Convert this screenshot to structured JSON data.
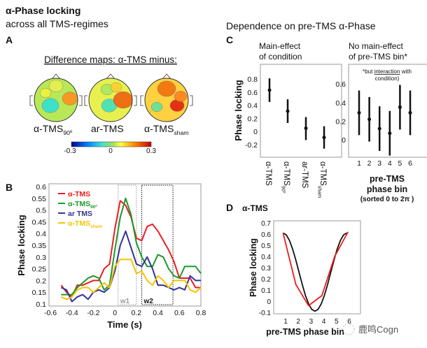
{
  "header": {
    "left_title": "α-Phase locking",
    "left_subtitle": "across all TMS-regimes",
    "right_title": "Dependence on pre-TMS α-Phase"
  },
  "panel_labels": {
    "a": "A",
    "b": "B",
    "c": "C",
    "d": "D"
  },
  "panel_a": {
    "heading": "Difference maps: α-TMS minus:",
    "maps": [
      {
        "label": "α-TMS",
        "sub": "90º"
      },
      {
        "label": "ar-TMS",
        "sub": ""
      },
      {
        "label": "α-TMS",
        "sub": "sham"
      }
    ],
    "colorbar": {
      "min": "-0.3",
      "mid": "0",
      "max": "0.3",
      "colors": [
        "#00008f",
        "#0080ff",
        "#40e0d0",
        "#a0e060",
        "#ffff40",
        "#ff8000",
        "#c00000"
      ]
    }
  },
  "chart_data": [
    {
      "id": "B",
      "type": "line",
      "xlabel": "Time (s)",
      "ylabel": "Phase locking",
      "xlim": [
        -0.6,
        0.8
      ],
      "ylim": [
        0.1,
        0.6
      ],
      "xticks": [
        "-0.6",
        "-0.4",
        "-0.2",
        "0",
        "0.2",
        "0.4",
        "0.6",
        "0.8"
      ],
      "yticks": [
        "0.1",
        "0.15",
        "0.2",
        "0.25",
        "0.3",
        "0.35",
        "0.4",
        "0.45",
        "0.5",
        "0.55",
        "0.6"
      ],
      "legend_position": "top-left",
      "windows": [
        {
          "label": "w1",
          "from": 0.03,
          "to": 0.2,
          "color": "#999999"
        },
        {
          "label": "w2",
          "from": 0.25,
          "to": 0.54,
          "color": "#111111"
        }
      ],
      "x": [
        -0.5,
        -0.45,
        -0.4,
        -0.35,
        -0.3,
        -0.25,
        -0.2,
        -0.15,
        -0.1,
        -0.05,
        0,
        0.05,
        0.1,
        0.15,
        0.2,
        0.25,
        0.3,
        0.35,
        0.4,
        0.45,
        0.5,
        0.55,
        0.6,
        0.65,
        0.7,
        0.75,
        0.8
      ],
      "series": [
        {
          "name": "α-TMS",
          "sub": "",
          "color": "#ee1c1c",
          "values": [
            0.18,
            0.15,
            0.13,
            0.18,
            0.18,
            0.19,
            0.2,
            0.2,
            0.25,
            0.27,
            0.42,
            0.54,
            0.52,
            0.47,
            0.38,
            0.37,
            0.43,
            0.44,
            0.41,
            0.37,
            0.33,
            0.28,
            0.21,
            0.21,
            0.21,
            0.17,
            0.17
          ]
        },
        {
          "name": "α-TMS",
          "sub": "90º",
          "color": "#1a9a2a",
          "values": [
            0.14,
            0.14,
            0.14,
            0.17,
            0.19,
            0.21,
            0.22,
            0.21,
            0.16,
            0.18,
            0.33,
            0.47,
            0.55,
            0.48,
            0.36,
            0.3,
            0.26,
            0.26,
            0.31,
            0.3,
            0.25,
            0.22,
            0.21,
            0.26,
            0.26,
            0.26,
            0.23
          ]
        },
        {
          "name": "ar TMS",
          "sub": "",
          "color": "#333399",
          "values": [
            0.17,
            0.16,
            0.11,
            0.13,
            0.14,
            0.12,
            0.15,
            0.16,
            0.15,
            0.17,
            0.24,
            0.35,
            0.41,
            0.34,
            0.27,
            0.26,
            0.3,
            0.25,
            0.18,
            0.18,
            0.17,
            0.16,
            0.17,
            0.16,
            0.22,
            0.2,
            0.2
          ]
        },
        {
          "name": "α-TMS",
          "sub": "sham",
          "color": "#f5c400",
          "values": [
            0.13,
            0.12,
            0.13,
            0.16,
            0.17,
            0.17,
            0.15,
            0.17,
            0.19,
            0.17,
            0.26,
            0.29,
            0.29,
            0.29,
            0.23,
            0.24,
            0.2,
            0.18,
            0.22,
            0.2,
            0.17,
            0.2,
            0.2,
            0.2,
            0.16,
            0.15,
            0.17
          ]
        }
      ]
    },
    {
      "id": "C-left",
      "type": "errorbar",
      "title": [
        "Main-effect",
        "of condition"
      ],
      "ylabel": "Phase locking",
      "ylim": [
        -0.35,
        1.0
      ],
      "yticks": [
        "-0.2",
        "0",
        "0.2",
        "0.4",
        "0.6",
        "0.8"
      ],
      "categories": [
        {
          "label": "α-TMS",
          "sub": ""
        },
        {
          "label": "α-TMS",
          "sub": "90º"
        },
        {
          "label": "ar-TMS",
          "sub": ""
        },
        {
          "label": "α-TMS",
          "sub": "sham"
        }
      ],
      "values": [
        0.63,
        0.31,
        0.05,
        -0.09
      ],
      "lower": [
        0.45,
        0.13,
        -0.13,
        -0.26
      ],
      "upper": [
        0.81,
        0.49,
        0.22,
        0.08
      ]
    },
    {
      "id": "C-right",
      "type": "errorbar",
      "title": [
        "No main-effect",
        "of pre-TMS bin*"
      ],
      "note": [
        "*but ",
        "interaction",
        " with",
        "condition)"
      ],
      "xlabel": [
        "pre-TMS",
        "phase bin"
      ],
      "xlabel_note": "(sorted 0 to 2π )",
      "ylim": [
        -0.2,
        0.8
      ],
      "yticks": [
        "0",
        "0.2",
        "0.4",
        "0.6"
      ],
      "categories": [
        "1",
        "2",
        "3",
        "4",
        "5",
        "6"
      ],
      "values": [
        0.29,
        0.22,
        0.12,
        0.07,
        0.35,
        0.29
      ],
      "lower": [
        0.05,
        -0.02,
        -0.12,
        -0.17,
        0.11,
        0.05
      ],
      "upper": [
        0.53,
        0.46,
        0.36,
        0.31,
        0.59,
        0.53
      ]
    },
    {
      "id": "D",
      "type": "line",
      "title": "α-TMS",
      "xlabel": "pre-TMS phase bin",
      "ylabel": "Phase locking",
      "xlim": [
        0,
        7
      ],
      "ylim": [
        -0.1,
        0.7
      ],
      "xticks": [
        "1",
        "2",
        "3",
        "4",
        "5",
        "6"
      ],
      "yticks": [
        "-0.1",
        "0",
        "0.1",
        "0.2",
        "0.3",
        "0.4",
        "0.5",
        "0.6",
        "0.7"
      ],
      "series": [
        {
          "color": "#ee1c1c",
          "x": [
            0.8,
            1.8,
            2.8,
            3.85,
            4.85,
            5.9
          ],
          "values": [
            0.61,
            0.15,
            -0.04,
            0.05,
            0.4,
            0.62
          ]
        },
        {
          "color": "#111111",
          "x": [
            0.8,
            1.05,
            1.3,
            1.55,
            1.8,
            2.05,
            2.3,
            2.55,
            2.8,
            3.05,
            3.3,
            3.55,
            3.8,
            4.05,
            4.3,
            4.55,
            4.8,
            5.05,
            5.3,
            5.55,
            5.8
          ],
          "values": [
            0.61,
            0.593,
            0.543,
            0.466,
            0.368,
            0.26,
            0.152,
            0.054,
            -0.023,
            -0.073,
            -0.09,
            -0.073,
            -0.023,
            0.054,
            0.152,
            0.26,
            0.368,
            0.466,
            0.543,
            0.593,
            0.61
          ]
        }
      ]
    }
  ],
  "watermark": "鹿鸣Cogn"
}
